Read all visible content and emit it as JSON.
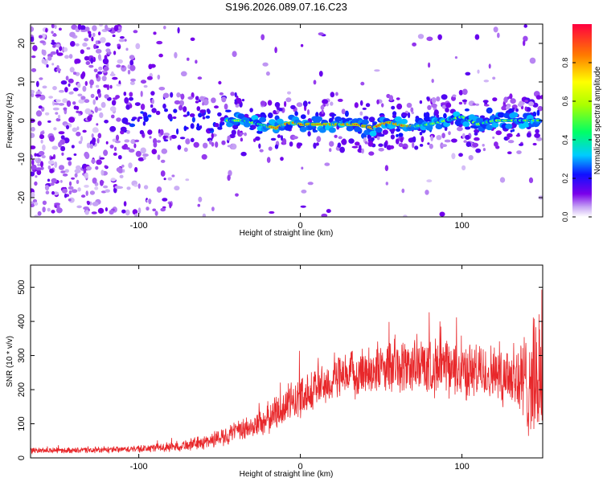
{
  "title": "S196.2026.089.07.16.C23",
  "chart_data": [
    {
      "type": "heatmap",
      "name": "spectrogram",
      "xlabel": "Height of straight line (km)",
      "ylabel": "Frequency (Hz)",
      "xlim": [
        -167,
        150
      ],
      "ylim": [
        -25,
        25
      ],
      "xticks": [
        -100,
        0,
        100
      ],
      "yticks": [
        -20,
        -10,
        0,
        10,
        20
      ],
      "colorbar": {
        "label": "Normalized spectral amplitude",
        "range": [
          0,
          1
        ],
        "ticks": [
          0.0,
          0.2,
          0.4,
          0.6,
          0.8
        ]
      },
      "signal_trace": {
        "x": [
          -45,
          -35,
          -25,
          -20,
          -15,
          -10,
          -5,
          0,
          10,
          20,
          30,
          35,
          40,
          45,
          50,
          55,
          60,
          65,
          70,
          80,
          90,
          100,
          110,
          120,
          130,
          140,
          148
        ],
        "y": [
          0,
          0,
          -1,
          -1.5,
          -2,
          -1,
          -0.5,
          -1,
          -1,
          -1,
          -1,
          -1,
          -1.5,
          -2,
          -1,
          -0.5,
          -1,
          -1.5,
          -1.5,
          -1,
          0,
          1,
          -1,
          0,
          0,
          0,
          0
        ]
      }
    },
    {
      "type": "line",
      "name": "snr",
      "xlabel": "Height of straight line (km)",
      "ylabel": "SNR (10 * v/v)",
      "xlim": [
        -167,
        150
      ],
      "ylim": [
        0,
        565
      ],
      "xticks": [
        -100,
        0,
        100
      ],
      "yticks": [
        0,
        100,
        200,
        300,
        400,
        500
      ],
      "color": "#e8272a",
      "envelope": {
        "x": [
          -167,
          -140,
          -120,
          -100,
          -80,
          -60,
          -50,
          -40,
          -30,
          -20,
          -10,
          0,
          10,
          20,
          30,
          40,
          50,
          60,
          70,
          80,
          90,
          100,
          110,
          120,
          130,
          138,
          145,
          150
        ],
        "mean": [
          22,
          22,
          23,
          26,
          32,
          45,
          60,
          75,
          90,
          115,
          150,
          180,
          205,
          225,
          240,
          255,
          262,
          265,
          270,
          268,
          262,
          255,
          252,
          250,
          245,
          220,
          230,
          240
        ],
        "spread": [
          8,
          8,
          9,
          10,
          14,
          20,
          25,
          30,
          35,
          45,
          55,
          60,
          60,
          60,
          65,
          70,
          70,
          75,
          80,
          80,
          80,
          80,
          80,
          80,
          100,
          140,
          170,
          180
        ]
      }
    }
  ]
}
